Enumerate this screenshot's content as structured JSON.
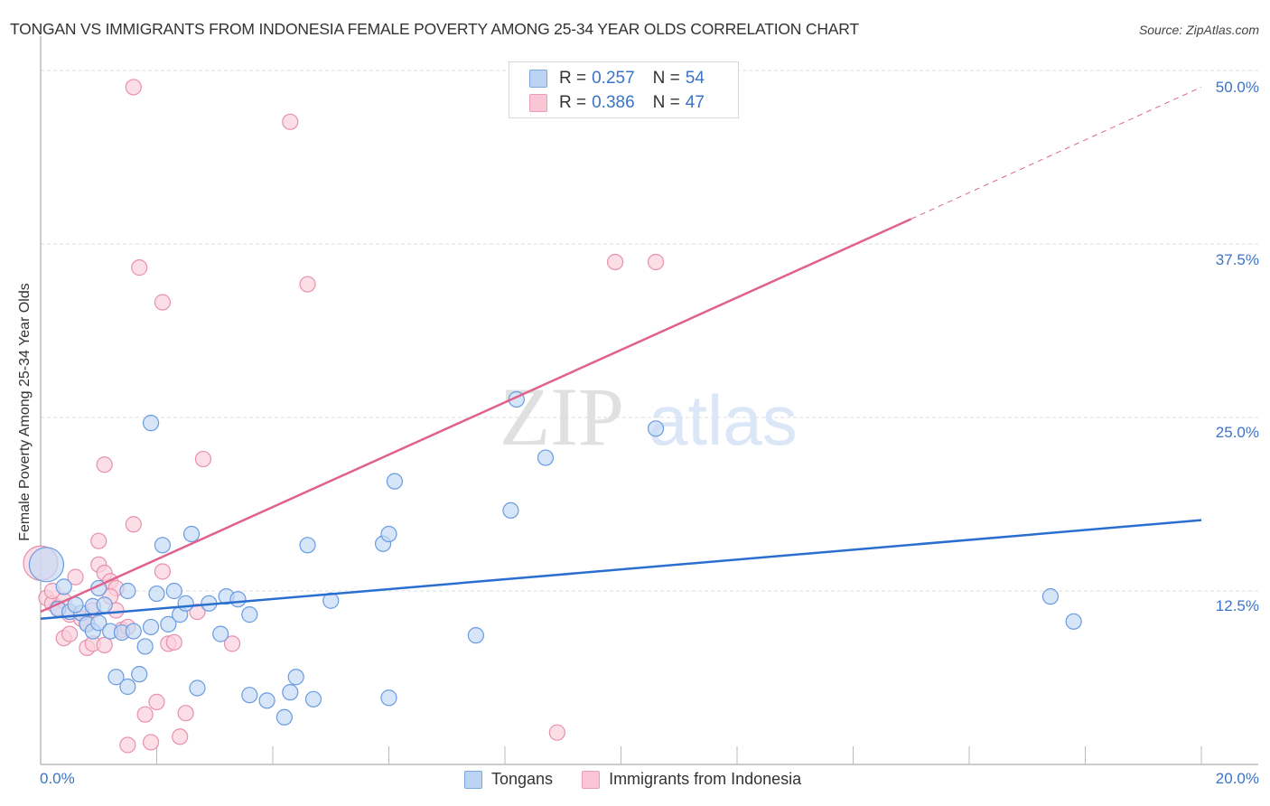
{
  "title": "TONGAN VS IMMIGRANTS FROM INDONESIA FEMALE POVERTY AMONG 25-34 YEAR OLDS CORRELATION CHART",
  "source": "Source: ZipAtlas.com",
  "watermark": {
    "zip": "ZIP",
    "atlas": "atlas"
  },
  "legend": {
    "series": [
      {
        "name": "Tongans",
        "r_label": "R =",
        "r_value": "0.257",
        "n_label": "N =",
        "n_value": "54",
        "fill": "#b8d0f0",
        "stroke": "#6a9be0"
      },
      {
        "name": "Immigrants from Indonesia",
        "r_label": "R =",
        "r_value": "0.386",
        "n_label": "N =",
        "n_value": "47",
        "fill": "#f9c4d4",
        "stroke": "#e890ac"
      }
    ]
  },
  "axes": {
    "ylabel": "Female Poverty Among 25-34 Year Olds",
    "x_min_label": "0.0%",
    "x_max_label": "20.0%",
    "y_ticks": [
      "12.5%",
      "25.0%",
      "37.5%",
      "50.0%"
    ]
  },
  "colors": {
    "blue_line": "#2a6fd0",
    "pink_line": "#e0628c",
    "blue_fill": "#c5daf5",
    "blue_stroke": "#6a9be0",
    "pink_fill": "#fbd0dd",
    "pink_stroke": "#e890ac",
    "tick_text": "#3a74c8",
    "grid": "#dddddd"
  },
  "chart_data": {
    "type": "scatter",
    "title": "TONGAN VS IMMIGRANTS FROM INDONESIA FEMALE POVERTY AMONG 25-34 YEAR OLDS CORRELATION CHART",
    "xlabel": "",
    "ylabel": "Female Poverty Among 25-34 Year Olds",
    "xlim": [
      0,
      20
    ],
    "ylim": [
      0,
      52
    ],
    "x_tick_labels": [
      "0.0%",
      "20.0%"
    ],
    "y_tick_labels": [
      "12.5%",
      "25.0%",
      "37.5%",
      "50.0%"
    ],
    "grid": true,
    "legend_position": "top-center",
    "series": [
      {
        "name": "Tongans",
        "r": 0.257,
        "n": 54,
        "trend": {
          "x": [
            0,
            20
          ],
          "y": [
            10.5,
            17.6
          ]
        },
        "points": [
          [
            0.1,
            14.4
          ],
          [
            0.4,
            12.8
          ],
          [
            0.3,
            11.2
          ],
          [
            0.5,
            11.0
          ],
          [
            0.7,
            10.9
          ],
          [
            0.8,
            10.1
          ],
          [
            0.9,
            9.6
          ],
          [
            1.0,
            12.7
          ],
          [
            0.9,
            11.4
          ],
          [
            1.1,
            11.5
          ],
          [
            1.0,
            10.2
          ],
          [
            1.2,
            9.6
          ],
          [
            1.4,
            9.5
          ],
          [
            1.5,
            12.5
          ],
          [
            1.6,
            9.6
          ],
          [
            1.3,
            6.3
          ],
          [
            1.7,
            6.5
          ],
          [
            1.5,
            5.6
          ],
          [
            1.8,
            8.5
          ],
          [
            1.9,
            24.6
          ],
          [
            2.0,
            12.3
          ],
          [
            2.1,
            15.8
          ],
          [
            2.2,
            10.1
          ],
          [
            2.3,
            12.5
          ],
          [
            2.4,
            10.8
          ],
          [
            2.5,
            11.6
          ],
          [
            2.6,
            16.6
          ],
          [
            2.7,
            5.5
          ],
          [
            2.9,
            11.6
          ],
          [
            3.1,
            9.4
          ],
          [
            3.2,
            12.1
          ],
          [
            3.4,
            11.9
          ],
          [
            3.6,
            10.8
          ],
          [
            3.6,
            5.0
          ],
          [
            3.9,
            4.6
          ],
          [
            4.2,
            3.4
          ],
          [
            4.3,
            5.2
          ],
          [
            4.4,
            6.3
          ],
          [
            4.6,
            15.8
          ],
          [
            4.7,
            4.7
          ],
          [
            5.0,
            11.8
          ],
          [
            5.9,
            15.9
          ],
          [
            6.0,
            16.6
          ],
          [
            6.1,
            20.4
          ],
          [
            6.0,
            4.8
          ],
          [
            7.5,
            9.3
          ],
          [
            8.1,
            18.3
          ],
          [
            8.2,
            26.3
          ],
          [
            8.7,
            22.1
          ],
          [
            10.6,
            24.2
          ],
          [
            17.4,
            12.1
          ],
          [
            17.8,
            10.3
          ],
          [
            0.6,
            11.5
          ],
          [
            1.9,
            9.9
          ]
        ]
      },
      {
        "name": "Immigrants from Indonesia",
        "r": 0.386,
        "n": 47,
        "trend": {
          "x": [
            0,
            15
          ],
          "y": [
            11.0,
            39.3
          ],
          "dashed_extension": {
            "x": [
              15,
              20
            ],
            "y": [
              39.3,
              48.8
            ]
          }
        },
        "points": [
          [
            0.0,
            14.5
          ],
          [
            0.1,
            12.0
          ],
          [
            0.2,
            11.6
          ],
          [
            0.3,
            11.3
          ],
          [
            0.4,
            9.1
          ],
          [
            0.5,
            10.8
          ],
          [
            0.6,
            13.5
          ],
          [
            0.5,
            9.4
          ],
          [
            0.7,
            10.5
          ],
          [
            0.8,
            8.4
          ],
          [
            0.9,
            8.7
          ],
          [
            0.9,
            11.1
          ],
          [
            1.0,
            14.4
          ],
          [
            1.1,
            13.8
          ],
          [
            1.2,
            13.2
          ],
          [
            1.0,
            16.1
          ],
          [
            1.3,
            12.7
          ],
          [
            1.2,
            12.1
          ],
          [
            1.3,
            11.1
          ],
          [
            1.4,
            9.7
          ],
          [
            1.1,
            8.6
          ],
          [
            1.1,
            21.6
          ],
          [
            1.5,
            9.9
          ],
          [
            1.5,
            1.4
          ],
          [
            1.6,
            17.3
          ],
          [
            1.6,
            48.8
          ],
          [
            1.7,
            35.8
          ],
          [
            1.8,
            3.6
          ],
          [
            1.9,
            1.6
          ],
          [
            2.0,
            4.5
          ],
          [
            2.1,
            33.3
          ],
          [
            2.1,
            13.9
          ],
          [
            2.2,
            8.7
          ],
          [
            2.3,
            8.8
          ],
          [
            2.4,
            2.0
          ],
          [
            2.5,
            3.7
          ],
          [
            2.7,
            11.0
          ],
          [
            2.8,
            22.0
          ],
          [
            3.3,
            8.7
          ],
          [
            4.3,
            46.3
          ],
          [
            4.6,
            34.6
          ],
          [
            8.9,
            2.3
          ],
          [
            9.9,
            36.2
          ],
          [
            10.6,
            36.2
          ],
          [
            0.4,
            11.8
          ],
          [
            0.2,
            12.5
          ],
          [
            0.8,
            10.2
          ]
        ]
      }
    ]
  }
}
